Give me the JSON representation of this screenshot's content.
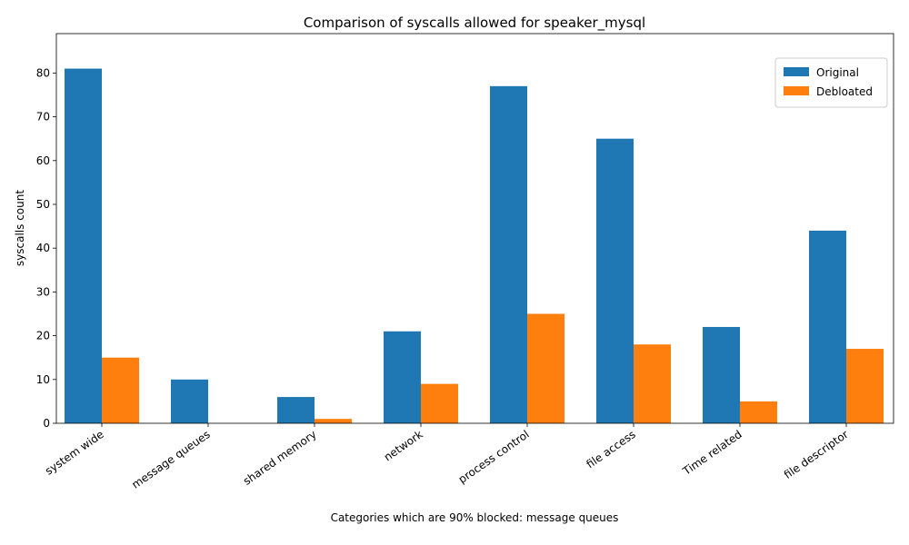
{
  "chart_data": {
    "type": "bar",
    "title": "Comparison of syscalls allowed for speaker_mysql",
    "xlabel": "Categories which are 90% blocked: message queues",
    "ylabel": "syscalls count",
    "categories": [
      "system wide",
      "message queues",
      "shared memory",
      "network",
      "process control",
      "file access",
      "Time related",
      "file descriptor"
    ],
    "series": [
      {
        "name": "Original",
        "color": "#1f77b4",
        "values": [
          81,
          10,
          6,
          21,
          77,
          65,
          22,
          44
        ]
      },
      {
        "name": "Debloated",
        "color": "#ff7f0e",
        "values": [
          15,
          0,
          1,
          9,
          25,
          18,
          5,
          17
        ]
      }
    ],
    "ylim": [
      0,
      89
    ],
    "yticks": [
      0,
      10,
      20,
      30,
      40,
      50,
      60,
      70,
      80
    ],
    "grid": false,
    "legend": "top-right"
  }
}
